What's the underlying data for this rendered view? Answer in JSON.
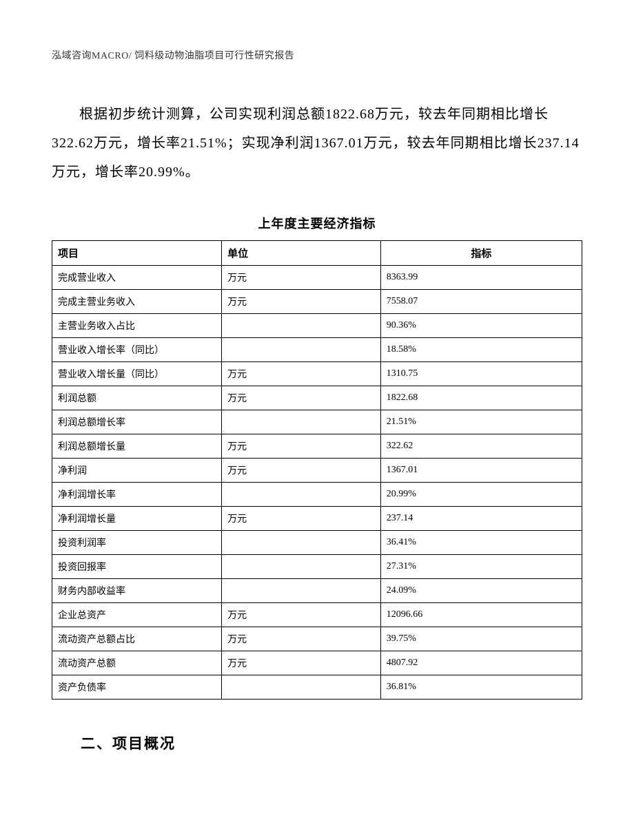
{
  "header": {
    "text": "泓域咨询MACRO/    饲料级动物油脂项目可行性研究报告"
  },
  "body_paragraph": "根据初步统计测算，公司实现利润总额1822.68万元，较去年同期相比增长322.62万元，增长率21.51%；实现净利润1367.01万元，较去年同期相比增长237.14万元，增长率20.99%。",
  "table": {
    "title": "上年度主要经济指标",
    "columns": {
      "item": "项目",
      "unit": "单位",
      "value": "指标"
    },
    "rows": [
      {
        "item": "完成营业收入",
        "unit": "万元",
        "value": "8363.99"
      },
      {
        "item": "完成主营业务收入",
        "unit": "万元",
        "value": "7558.07"
      },
      {
        "item": "主营业务收入占比",
        "unit": "",
        "value": "90.36%"
      },
      {
        "item": "营业收入增长率（同比）",
        "unit": "",
        "value": "18.58%"
      },
      {
        "item": "营业收入增长量（同比）",
        "unit": "万元",
        "value": "1310.75"
      },
      {
        "item": "利润总额",
        "unit": "万元",
        "value": "1822.68"
      },
      {
        "item": "利润总额增长率",
        "unit": "",
        "value": "21.51%"
      },
      {
        "item": "利润总额增长量",
        "unit": "万元",
        "value": "322.62"
      },
      {
        "item": "净利润",
        "unit": "万元",
        "value": "1367.01"
      },
      {
        "item": "净利润增长率",
        "unit": "",
        "value": "20.99%"
      },
      {
        "item": "净利润增长量",
        "unit": "万元",
        "value": "237.14"
      },
      {
        "item": "投资利润率",
        "unit": "",
        "value": "36.41%"
      },
      {
        "item": "投资回报率",
        "unit": "",
        "value": "27.31%"
      },
      {
        "item": "财务内部收益率",
        "unit": "",
        "value": "24.09%"
      },
      {
        "item": "企业总资产",
        "unit": "万元",
        "value": "12096.66"
      },
      {
        "item": "流动资产总额占比",
        "unit": "万元",
        "value": "39.75%"
      },
      {
        "item": "流动资产总额",
        "unit": "万元",
        "value": "4807.92"
      },
      {
        "item": "资产负债率",
        "unit": "",
        "value": "36.81%"
      }
    ]
  },
  "section_heading": "二、项目概况"
}
